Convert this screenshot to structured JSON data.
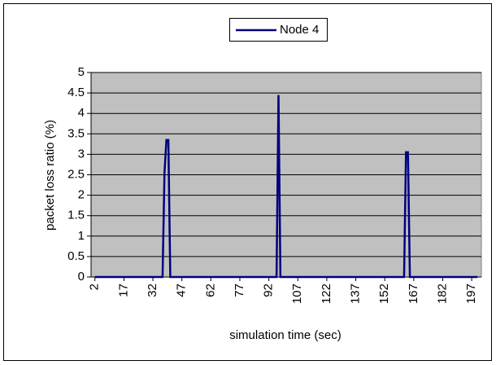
{
  "chart_data": {
    "type": "line",
    "xlabel": "simulation time (sec)",
    "ylabel": "packet loss ratio (%)",
    "x": [
      2,
      37,
      38,
      39,
      40,
      41,
      96,
      97,
      98,
      162,
      163,
      164,
      165,
      200
    ],
    "series": [
      {
        "name": "Node 4",
        "color": "#000080",
        "values": [
          0,
          0,
          2.55,
          3.35,
          3.35,
          0,
          0,
          4.45,
          0,
          0,
          3.05,
          3.05,
          0,
          0
        ]
      }
    ],
    "xlim": [
      0,
      202
    ],
    "xticks": [
      2,
      17,
      32,
      47,
      62,
      77,
      92,
      107,
      122,
      137,
      152,
      167,
      182,
      197
    ],
    "ylim": [
      0,
      5
    ],
    "yticks": [
      0,
      0.5,
      1,
      1.5,
      2,
      2.5,
      3,
      3.5,
      4,
      4.5,
      5
    ],
    "grid": true,
    "legend": "top",
    "plot_background": "#c0c0c0"
  }
}
